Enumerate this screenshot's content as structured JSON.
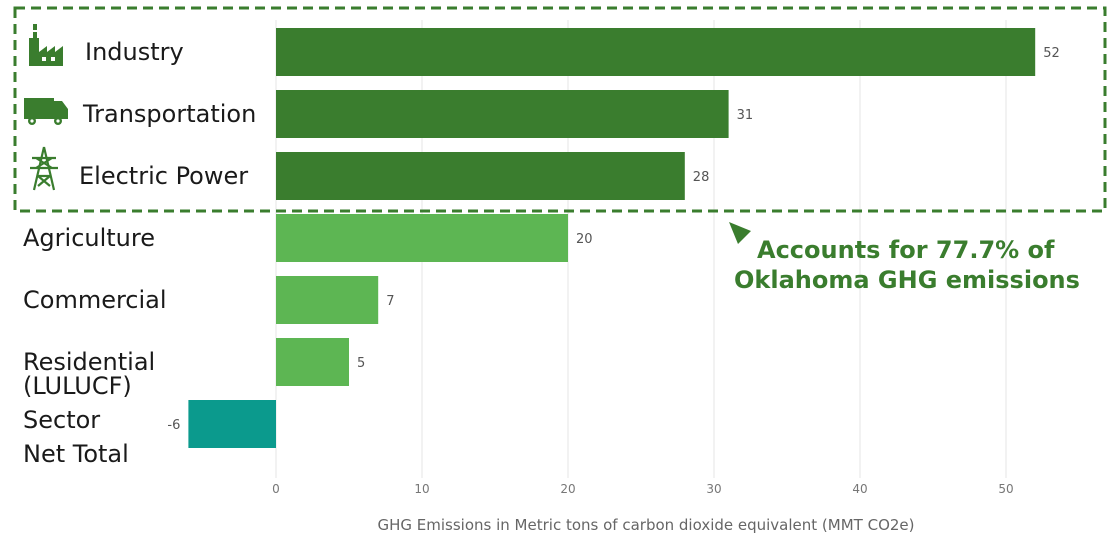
{
  "chart_data": {
    "type": "bar",
    "orientation": "horizontal",
    "categories": [
      "Industry",
      "Transportation",
      "Electric Power",
      "Agriculture",
      "Commercial",
      "Residential",
      "(LULUCF) Sector Net Total"
    ],
    "category_lines": [
      [
        "Industry"
      ],
      [
        "Transportation"
      ],
      [
        "Electric Power"
      ],
      [
        "Agriculture"
      ],
      [
        "Commercial"
      ],
      [
        "Residential"
      ],
      [
        "(LULUCF)",
        "Sector",
        "Net Total"
      ]
    ],
    "values": [
      52,
      31,
      28,
      20,
      7,
      5,
      -6
    ],
    "value_labels": [
      "52",
      "31",
      "28",
      "20",
      "7",
      "5",
      "-6"
    ],
    "category_icons": [
      "factory-icon",
      "truck-icon",
      "transmission-tower-icon",
      null,
      null,
      null,
      null
    ],
    "bar_colors": [
      "#3a7d2e",
      "#3a7d2e",
      "#3a7d2e",
      "#5db653",
      "#5db653",
      "#5db653",
      "#0b9a8d"
    ],
    "xlabel": "GHG Emissions in Metric tons of carbon dioxide equivalent (MMT CO2e)",
    "ylabel": "",
    "title": "",
    "xlim": [
      -6,
      52
    ],
    "xticks": [
      0,
      10,
      20,
      30,
      40,
      50
    ],
    "grid": "vertical",
    "highlight": {
      "categories": [
        "Industry",
        "Transportation",
        "Electric Power"
      ],
      "style": "dashed box",
      "color": "#3a7d2e"
    },
    "annotation": {
      "lines": [
        "Accounts for 77.7% of",
        "Oklahoma GHG emissions"
      ],
      "color": "#3a7d2e"
    }
  }
}
